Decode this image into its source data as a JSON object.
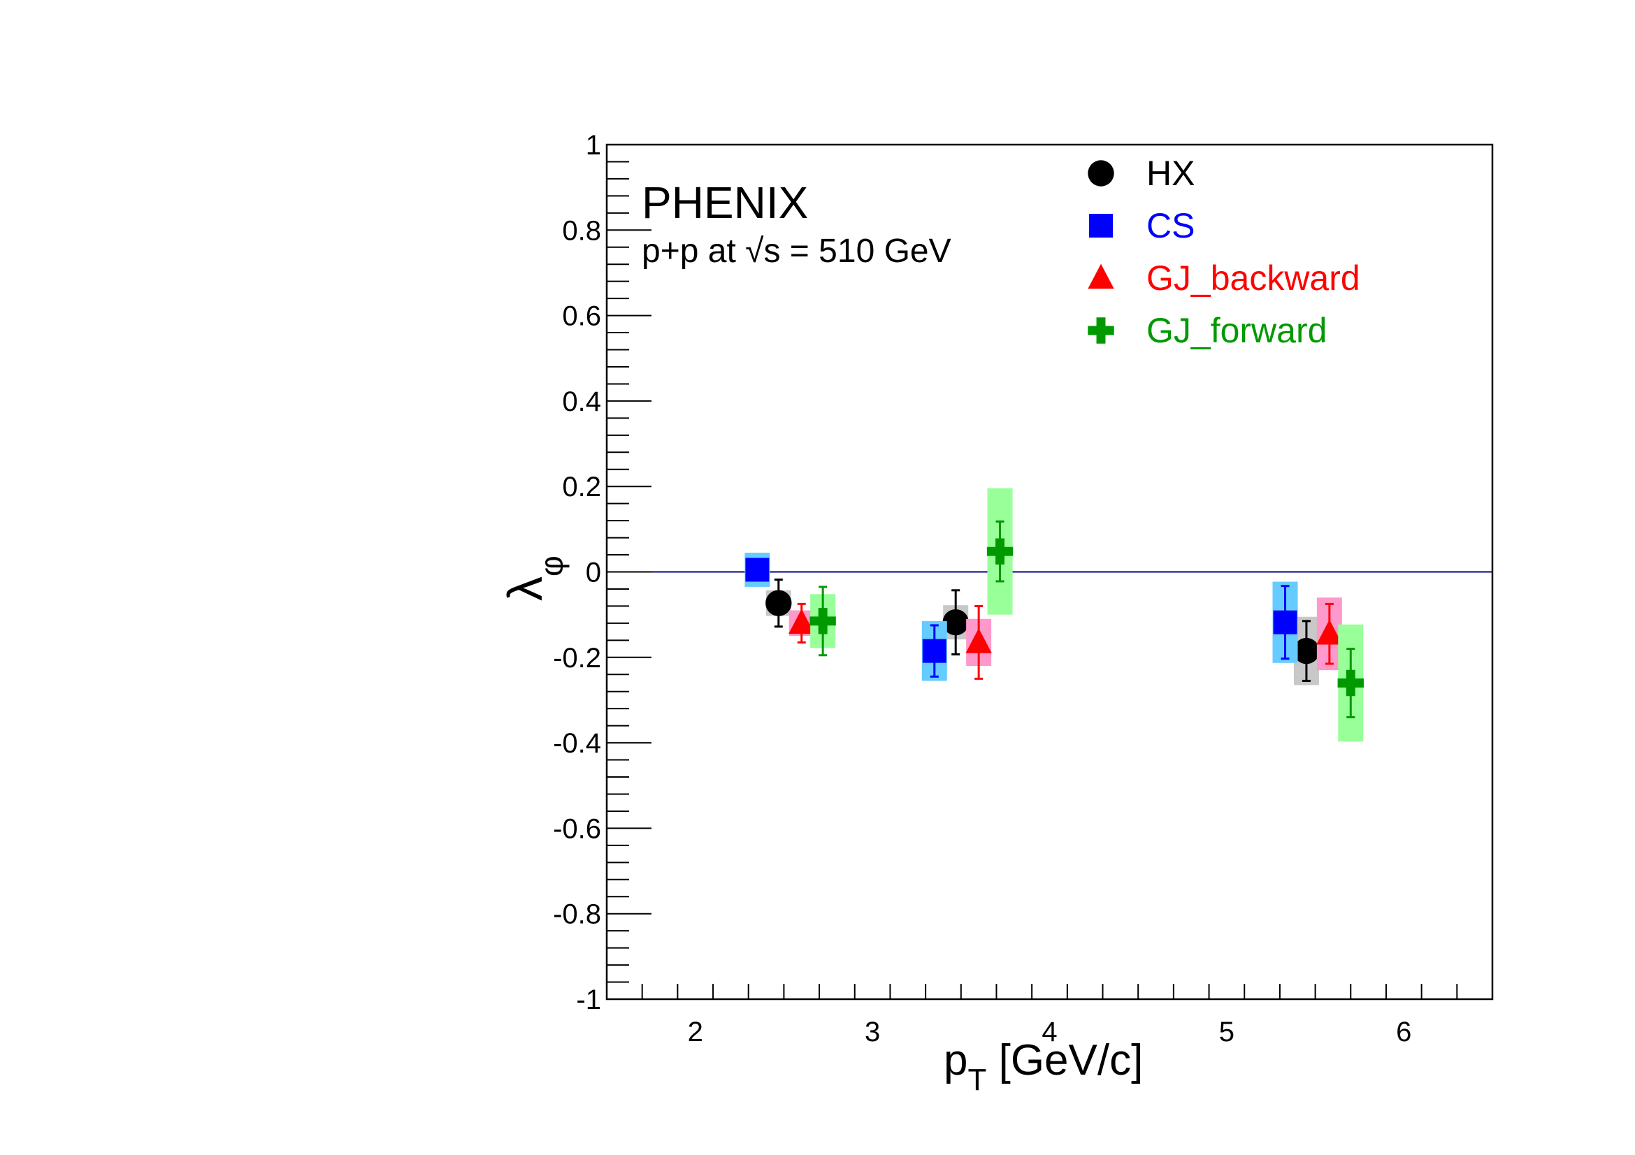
{
  "chart_data": {
    "type": "scatter",
    "experiment": "PHENIX",
    "collision_prefix": "p+p at ",
    "collision_sqrt": "s",
    "collision_energy": " = 510 GeV",
    "xlabel_main": "p",
    "xlabel_sub": "T",
    "xlabel_unit": " [GeV/c]",
    "ylabel_main": "λ",
    "ylabel_sub": "φ",
    "xlim": [
      1.5,
      6.5
    ],
    "ylim": [
      -1,
      1
    ],
    "x_ticks": [
      2,
      3,
      4,
      5,
      6
    ],
    "x_tick_labels": [
      "2",
      "3",
      "4",
      "5",
      "6"
    ],
    "y_ticks": [
      -1,
      -0.8,
      -0.6,
      -0.4,
      -0.2,
      0,
      0.2,
      0.4,
      0.6,
      0.8,
      1
    ],
    "y_tick_labels": [
      "-1",
      "-0.8",
      "-0.6",
      "-0.4",
      "-0.2",
      "0",
      "0.2",
      "0.4",
      "0.6",
      "0.8",
      "1"
    ],
    "reference_line_y": 0,
    "legend_position": "top-right",
    "series": [
      {
        "name": "HX",
        "marker": "circle",
        "color": "#000000",
        "band_color": "#c8c8c8",
        "points": [
          {
            "x": 2.47,
            "y": -0.073,
            "stat": 0.055,
            "sys": 0.03
          },
          {
            "x": 3.47,
            "y": -0.118,
            "stat": 0.075,
            "sys": 0.04
          },
          {
            "x": 5.45,
            "y": -0.185,
            "stat": 0.07,
            "sys": 0.08
          }
        ]
      },
      {
        "name": "CS",
        "marker": "square",
        "color": "#0000ff",
        "band_color": "#66ccff",
        "points": [
          {
            "x": 2.35,
            "y": 0.005,
            "stat": 0.01,
            "sys": 0.04
          },
          {
            "x": 3.35,
            "y": -0.185,
            "stat": 0.06,
            "sys": 0.07
          },
          {
            "x": 5.33,
            "y": -0.118,
            "stat": 0.085,
            "sys": 0.095
          }
        ]
      },
      {
        "name": "GJ_backward",
        "marker": "triangle",
        "color": "#ff0000",
        "band_color": "#ff99cc",
        "points": [
          {
            "x": 2.6,
            "y": -0.12,
            "stat": 0.045,
            "sys": 0.03
          },
          {
            "x": 3.6,
            "y": -0.165,
            "stat": 0.085,
            "sys": 0.055
          },
          {
            "x": 5.58,
            "y": -0.145,
            "stat": 0.07,
            "sys": 0.085
          }
        ]
      },
      {
        "name": "GJ_forward",
        "marker": "cross",
        "color": "#009900",
        "band_color": "#99ff99",
        "points": [
          {
            "x": 2.72,
            "y": -0.115,
            "stat": 0.08,
            "sys": 0.063
          },
          {
            "x": 3.72,
            "y": 0.048,
            "stat": 0.07,
            "sys": 0.148
          },
          {
            "x": 5.7,
            "y": -0.26,
            "stat": 0.08,
            "sys": 0.137
          }
        ]
      }
    ]
  }
}
